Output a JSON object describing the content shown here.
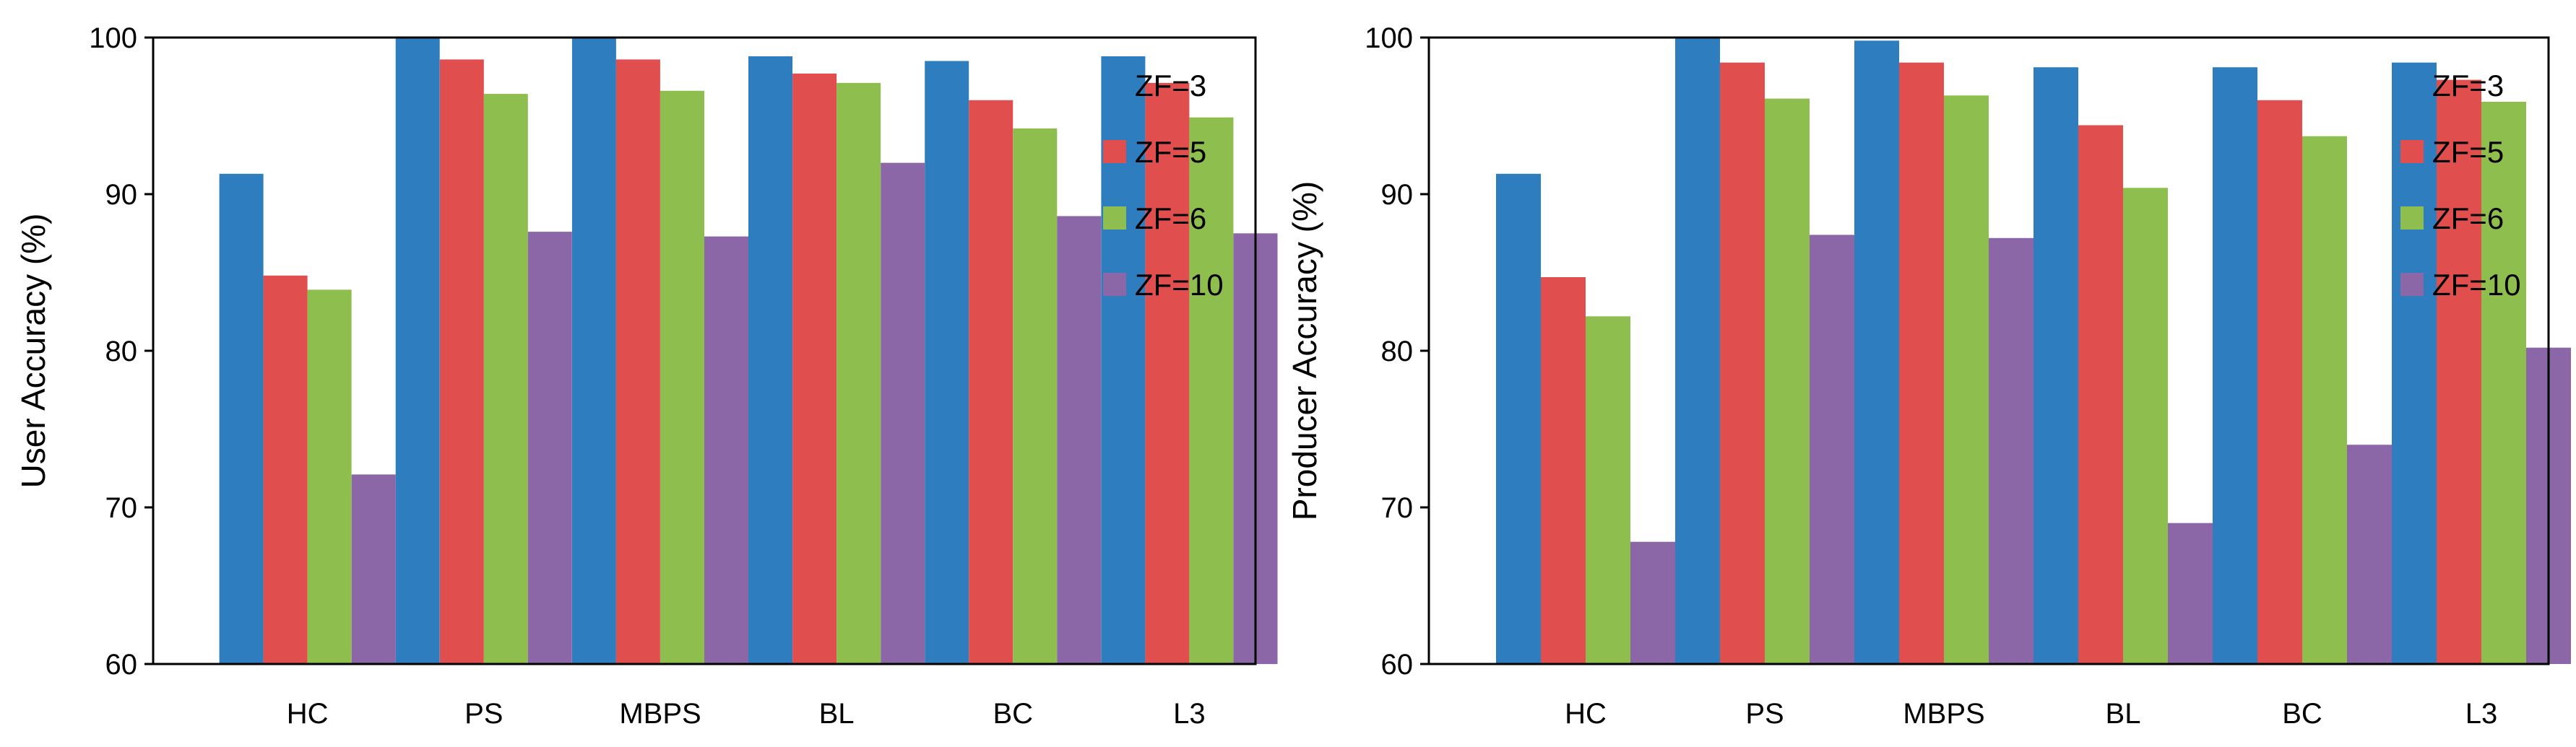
{
  "chart_data": [
    {
      "type": "bar",
      "title": "",
      "xlabel": "",
      "ylabel": "User Accuracy (%)",
      "ylim": [
        60,
        100
      ],
      "yticks": [
        60,
        70,
        80,
        90,
        100
      ],
      "categories": [
        "HC",
        "PS",
        "MBPS",
        "BL",
        "BC",
        "L3"
      ],
      "grid": false,
      "legend_position": "top-right",
      "series": [
        {
          "name": "ZF=3",
          "color": "#2e7ebf",
          "values": [
            91.3,
            100,
            100,
            98.8,
            98.5,
            98.8
          ]
        },
        {
          "name": "ZF=5",
          "color": "#e04e4d",
          "values": [
            84.8,
            98.6,
            98.6,
            97.7,
            96.0,
            97.1
          ]
        },
        {
          "name": "ZF=6",
          "color": "#8dbe4e",
          "values": [
            83.9,
            96.4,
            96.6,
            97.1,
            94.2,
            94.9
          ]
        },
        {
          "name": "ZF=10",
          "color": "#8b67a8",
          "values": [
            72.1,
            87.6,
            87.3,
            92.0,
            88.6,
            87.5
          ]
        }
      ]
    },
    {
      "type": "bar",
      "title": "",
      "xlabel": "",
      "ylabel": "Producer Accuracy (%)",
      "ylim": [
        60,
        100
      ],
      "yticks": [
        60,
        70,
        80,
        90,
        100
      ],
      "categories": [
        "HC",
        "PS",
        "MBPS",
        "BL",
        "BC",
        "L3"
      ],
      "grid": false,
      "legend_position": "top-right",
      "series": [
        {
          "name": "ZF=3",
          "color": "#2e7ebf",
          "values": [
            91.3,
            100,
            99.8,
            98.1,
            98.1,
            98.4
          ]
        },
        {
          "name": "ZF=5",
          "color": "#e04e4d",
          "values": [
            84.7,
            98.4,
            98.4,
            94.4,
            96.0,
            97.3
          ]
        },
        {
          "name": "ZF=6",
          "color": "#8dbe4e",
          "values": [
            82.2,
            96.1,
            96.3,
            90.4,
            93.7,
            95.9
          ]
        },
        {
          "name": "ZF=10",
          "color": "#8b67a8",
          "values": [
            67.8,
            87.4,
            87.2,
            69.0,
            74.0,
            80.2
          ]
        }
      ]
    }
  ]
}
